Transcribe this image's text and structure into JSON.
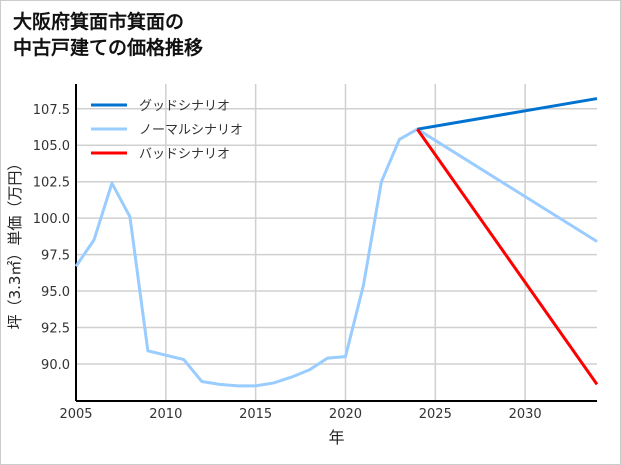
{
  "title_lines": [
    "大阪府箕面市箕面の",
    "中古戸建ての価格推移"
  ],
  "chart_data": {
    "type": "line",
    "title": "大阪府箕面市箕面の中古戸建ての価格推移",
    "xlabel": "年",
    "ylabel": "坪（3.3㎡）単価（万円）",
    "xlim": [
      2005,
      2034
    ],
    "ylim": [
      87.46,
      109.2
    ],
    "xticks": [
      2005,
      2010,
      2015,
      2020,
      2025,
      2030
    ],
    "yticks": [
      90.0,
      92.5,
      95.0,
      97.5,
      100.0,
      102.5,
      105.0,
      107.5
    ],
    "ytick_labels": [
      "90.0",
      "92.5",
      "95.0",
      "97.5",
      "100.0",
      "102.5",
      "105.0",
      "107.5"
    ],
    "grid": true,
    "legend_position": "top-left",
    "series": [
      {
        "name": "グッドシナリオ",
        "color": "#0072cf",
        "x": [
          2024,
          2034
        ],
        "y": [
          106.1,
          108.2
        ]
      },
      {
        "name": "ノーマルシナリオ",
        "color": "#99ccff",
        "x": [
          2005,
          2006,
          2007,
          2008,
          2009,
          2010,
          2011,
          2012,
          2013,
          2014,
          2015,
          2016,
          2017,
          2018,
          2019,
          2020,
          2021,
          2022,
          2023,
          2024,
          2034
        ],
        "y": [
          96.7,
          98.5,
          102.4,
          100.1,
          90.9,
          90.6,
          90.3,
          88.8,
          88.6,
          88.5,
          88.5,
          88.7,
          89.1,
          89.6,
          90.4,
          90.5,
          95.4,
          102.5,
          105.4,
          106.1,
          98.4
        ]
      },
      {
        "name": "バッドシナリオ",
        "color": "#ff0000",
        "x": [
          2024,
          2034
        ],
        "y": [
          106.1,
          88.6
        ]
      }
    ]
  }
}
